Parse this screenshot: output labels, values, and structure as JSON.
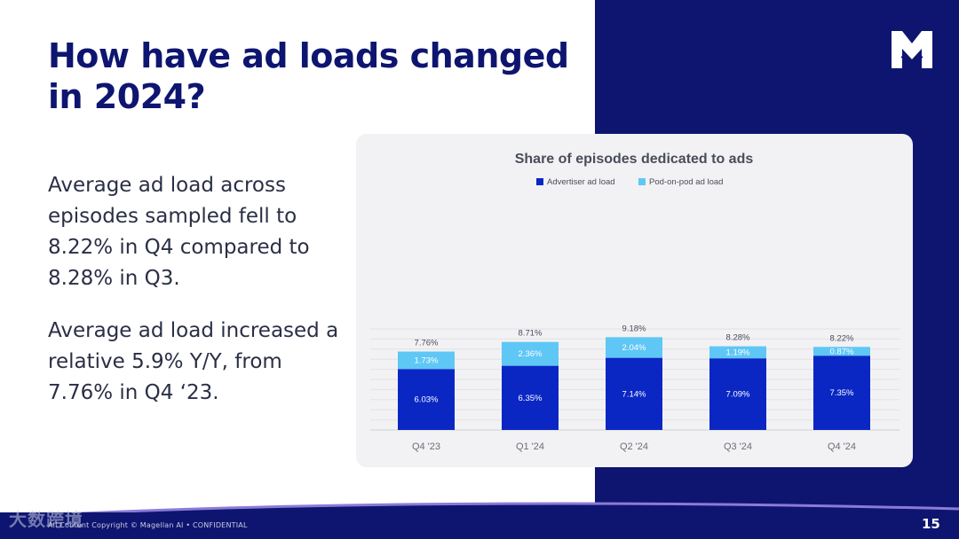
{
  "slide": {
    "title": "How have ad loads changed in 2024?",
    "paragraph_1": "Average ad load across episodes sampled fell to 8.22% in Q4 compared to 8.28% in Q3.",
    "paragraph_2": "Average ad load increased a relative 5.9% Y/Y, from 7.76% in Q4 ‘23.",
    "footer": "All Content Copyright © Magellan AI • CONFIDENTIAL",
    "page_number": "15",
    "watermark": "大数跨境"
  },
  "colors": {
    "navy": "#0e1570",
    "advertiser": "#0a27c4",
    "pod_on_pod": "#5fc7f5",
    "card_bg": "#f2f2f4"
  },
  "chart_data": {
    "type": "bar",
    "stacked": true,
    "title": "Share of episodes dedicated to ads",
    "categories": [
      "Q4 '23",
      "Q1 '24",
      "Q2 '24",
      "Q3 '24",
      "Q4 '24"
    ],
    "series": [
      {
        "name": "Advertiser ad load",
        "values": [
          6.03,
          6.35,
          7.14,
          7.09,
          7.35
        ],
        "labels": [
          "6.03%",
          "6.35%",
          "7.14%",
          "7.09%",
          "7.35%"
        ],
        "color": "#0a27c4"
      },
      {
        "name": "Pod-on-pod ad load",
        "values": [
          1.73,
          2.36,
          2.04,
          1.19,
          0.87
        ],
        "labels": [
          "1.73%",
          "2.36%",
          "2.04%",
          "1.19%",
          "0.87%"
        ],
        "color": "#5fc7f5"
      }
    ],
    "totals": [
      7.76,
      8.71,
      9.18,
      8.28,
      8.22
    ],
    "total_labels": [
      "7.76%",
      "8.71%",
      "9.18%",
      "8.28%",
      "8.22%"
    ],
    "ylim": [
      0,
      10
    ],
    "grid": true,
    "legend_position": "top-center"
  }
}
